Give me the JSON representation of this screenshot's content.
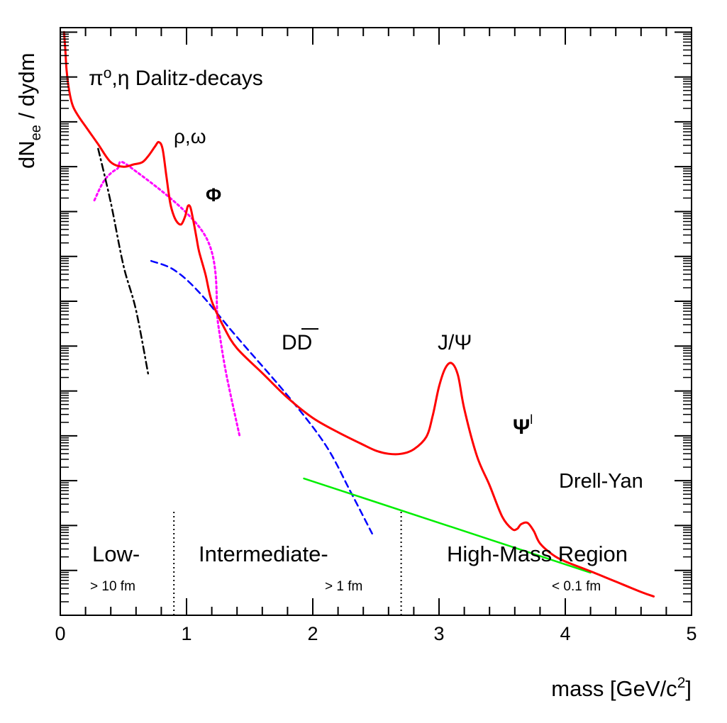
{
  "chart_data": {
    "type": "line",
    "title": "",
    "xlabel": "mass [GeV/c",
    "xlabel_sup": "2",
    "xlabel_end": "]",
    "ylabel": "dN",
    "ylabel_sub": "ee",
    "ylabel_end": " / dydm",
    "xlim": [
      0,
      5
    ],
    "ylim": [
      0,
      13.1
    ],
    "y_scale": "log (decade ticks, unlabeled)",
    "x_ticks": [
      "0",
      "1",
      "2",
      "3",
      "4",
      "5"
    ],
    "grid": false,
    "legend": "none",
    "colors": {
      "total": "#ff0000",
      "dalitz": "#000000",
      "vector": "#ff00ff",
      "open_charm": "#0000ff",
      "drell_yan": "#00ee00",
      "boundary": "#000000"
    },
    "series": [
      {
        "role": "total",
        "x": [
          0.03,
          0.04,
          0.05,
          0.07,
          0.1,
          0.15,
          0.2,
          0.3,
          0.4,
          0.5,
          0.58,
          0.65,
          0.7,
          0.75,
          0.78,
          0.81,
          0.84,
          0.87,
          0.9,
          0.93,
          0.96,
          0.99,
          1.01,
          1.03,
          1.05,
          1.08,
          1.1,
          1.15,
          1.2,
          1.3,
          1.4,
          1.6,
          1.8,
          2.0,
          2.2,
          2.4,
          2.5,
          2.6,
          2.7,
          2.8,
          2.9,
          2.95,
          3.0,
          3.05,
          3.1,
          3.15,
          3.2,
          3.3,
          3.4,
          3.5,
          3.58,
          3.62,
          3.65,
          3.7,
          3.75,
          3.8,
          3.9,
          4.0,
          4.2,
          4.4,
          4.6,
          4.7
        ],
        "y": [
          13.0,
          12.6,
          12.15,
          11.7,
          11.35,
          11.1,
          10.9,
          10.5,
          10.1,
          10.0,
          10.05,
          10.1,
          10.25,
          10.45,
          10.55,
          10.4,
          9.8,
          9.2,
          8.9,
          8.75,
          8.72,
          8.9,
          9.12,
          9.1,
          8.85,
          8.4,
          8.1,
          7.6,
          7.0,
          6.4,
          5.95,
          5.4,
          4.85,
          4.4,
          4.08,
          3.8,
          3.67,
          3.6,
          3.6,
          3.7,
          3.98,
          4.45,
          5.1,
          5.51,
          5.62,
          5.35,
          4.6,
          3.55,
          2.9,
          2.2,
          1.92,
          1.93,
          2.03,
          2.06,
          1.88,
          1.6,
          1.35,
          1.2,
          0.98,
          0.75,
          0.52,
          0.42
        ]
      },
      {
        "role": "dalitz",
        "x": [
          0.3,
          0.4,
          0.5,
          0.6,
          0.7
        ],
        "y": [
          10.4,
          9.2,
          7.8,
          6.8,
          5.32
        ]
      },
      {
        "role": "vector",
        "x": [
          0.27,
          0.35,
          0.45,
          0.55,
          1.15,
          1.25,
          1.3,
          1.35,
          1.42
        ],
        "y": [
          9.25,
          9.7,
          9.95,
          10.0,
          8.45,
          6.5,
          5.6,
          4.9,
          4.0
        ]
      },
      {
        "role": "open_charm",
        "x": [
          0.72,
          0.9,
          1.1,
          1.4,
          1.8,
          2.1,
          2.3,
          2.47
        ],
        "y": [
          7.9,
          7.7,
          7.2,
          6.2,
          4.9,
          3.8,
          2.75,
          1.82
        ]
      },
      {
        "role": "drell_yan",
        "x": [
          1.93,
          4.2
        ],
        "y": [
          3.05,
          0.95
        ]
      }
    ],
    "annotations": [
      {
        "key": "dalitz",
        "text": "Dalitz-decays"
      },
      {
        "key": "rho",
        "text": "ρ,ω"
      },
      {
        "key": "phi",
        "text": "Φ"
      },
      {
        "key": "ddbar",
        "text": "DD"
      },
      {
        "key": "jpsi",
        "text": "J/Ψ"
      },
      {
        "key": "psip",
        "text": "Ψ",
        "sup": "l"
      },
      {
        "key": "dy",
        "text": "Drell-Yan"
      },
      {
        "key": "low",
        "text": "Low-"
      },
      {
        "key": "low_scale",
        "text": "> 10 fm"
      },
      {
        "key": "mid",
        "text": "Intermediate-"
      },
      {
        "key": "mid_scale",
        "text": "> 1 fm"
      },
      {
        "key": "high",
        "text": "High-Mass Region"
      },
      {
        "key": "high_scale",
        "text": "< 0.1 fm"
      }
    ],
    "dalitz_label_prefix": "π",
    "dalitz_label_sup": "o",
    "dalitz_label_mid": ",η ",
    "region_boundaries": [
      0.9,
      2.7
    ]
  }
}
